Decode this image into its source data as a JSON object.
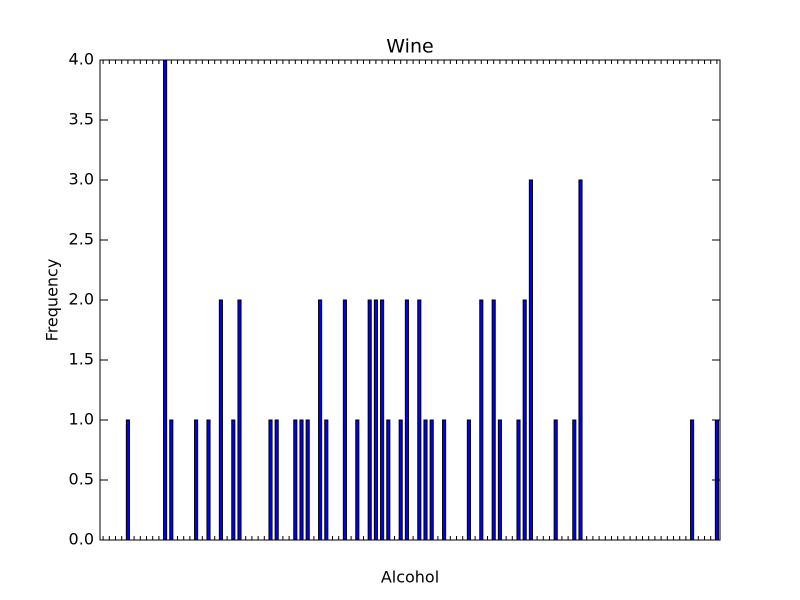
{
  "chart_data": {
    "type": "bar",
    "title": "Wine",
    "x_label": "Alcohol",
    "y_label": "Frequency",
    "categories": [
      null,
      null,
      null,
      null,
      null,
      null,
      null,
      null,
      null,
      null,
      null,
      null,
      null,
      null,
      null,
      null,
      null,
      null,
      null,
      null,
      null,
      null,
      null,
      null,
      null,
      null,
      null,
      null,
      null,
      null,
      null,
      null,
      null,
      null,
      null,
      null,
      null,
      null,
      null,
      null,
      null,
      null,
      null,
      null,
      null,
      null,
      null,
      null,
      null,
      null,
      null,
      null,
      null,
      null,
      null,
      null,
      null,
      null,
      null,
      null,
      null,
      null,
      null,
      null,
      null,
      null,
      null,
      null,
      null,
      null,
      null,
      null,
      null,
      null,
      null,
      null,
      null,
      null,
      null,
      null,
      null,
      null,
      null,
      null,
      null,
      null,
      null,
      null,
      null,
      null,
      null,
      null,
      null,
      null,
      null,
      null,
      null,
      null,
      null,
      null
    ],
    "values": [
      0,
      0,
      0,
      0,
      1,
      0,
      0,
      0,
      0,
      0,
      4,
      1,
      0,
      0,
      0,
      1,
      0,
      1,
      0,
      2,
      0,
      1,
      2,
      0,
      0,
      0,
      0,
      1,
      1,
      0,
      0,
      1,
      1,
      1,
      0,
      2,
      1,
      0,
      0,
      2,
      0,
      1,
      0,
      2,
      2,
      2,
      1,
      0,
      1,
      2,
      0,
      2,
      1,
      1,
      0,
      1,
      0,
      0,
      0,
      1,
      0,
      2,
      0,
      2,
      1,
      0,
      0,
      1,
      2,
      3,
      0,
      0,
      0,
      1,
      0,
      0,
      1,
      3,
      0,
      0,
      0,
      0,
      0,
      0,
      0,
      0,
      0,
      0,
      0,
      0,
      0,
      0,
      0,
      0,
      0,
      1,
      0,
      0,
      0,
      1
    ],
    "color": "#0000ff",
    "ylim": [
      0,
      4
    ],
    "yticks": [
      {
        "value": 0,
        "label": "0.0"
      },
      {
        "value": 0.5,
        "label": "0.5"
      },
      {
        "value": 1,
        "label": "1.0"
      },
      {
        "value": 1.5,
        "label": "1.5"
      },
      {
        "value": 2,
        "label": "2.0"
      },
      {
        "value": 2.5,
        "label": "2.5"
      },
      {
        "value": 3,
        "label": "3.0"
      },
      {
        "value": 3.5,
        "label": "3.5"
      },
      {
        "value": 4,
        "label": "4.0"
      }
    ],
    "grid": false
  }
}
